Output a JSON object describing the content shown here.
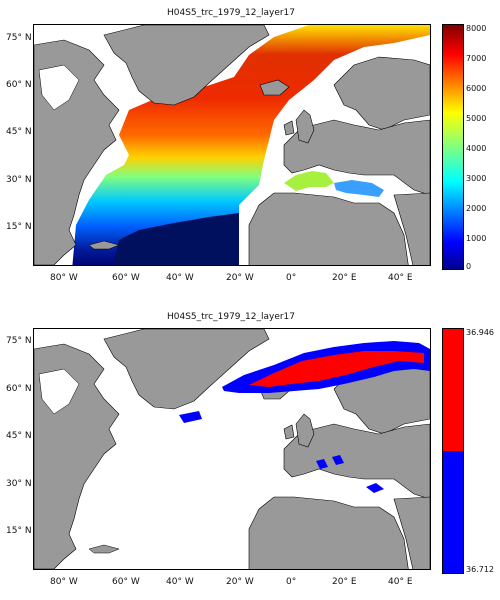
{
  "figure": {
    "panels": [
      {
        "title": "H04S5_trc_1979_12_layer17",
        "lat_labels": [
          "75° N",
          "60° N",
          "45° N",
          "30° N",
          "15° N"
        ],
        "lon_labels": [
          "80° W",
          "60° W",
          "40° W",
          "20° W",
          "0°",
          "20° E",
          "40° E"
        ],
        "colorbar": {
          "colormap": "jet",
          "ticks": [
            "8000",
            "7000",
            "6000",
            "5000",
            "4000",
            "3000",
            "2000",
            "1000",
            "0"
          ],
          "range": [
            0,
            8000
          ]
        }
      },
      {
        "title": "H04S5_trc_1979_12_layer17",
        "lat_labels": [
          "75° N",
          "60° N",
          "45° N",
          "30° N",
          "15° N"
        ],
        "lon_labels": [
          "80° W",
          "60° W",
          "40° W",
          "20° W",
          "0°",
          "20° E",
          "40° E"
        ],
        "colorbar": {
          "colormap": "two-class",
          "max_label": "36.946",
          "min_label": "36.712",
          "colors": [
            "#ff0000",
            "#0000ff"
          ]
        }
      }
    ],
    "colors": {
      "land": "#999999",
      "ocean_nodata": "#ffffff",
      "coast": "#000000",
      "low": "#0000ff",
      "high": "#ff0000"
    }
  }
}
